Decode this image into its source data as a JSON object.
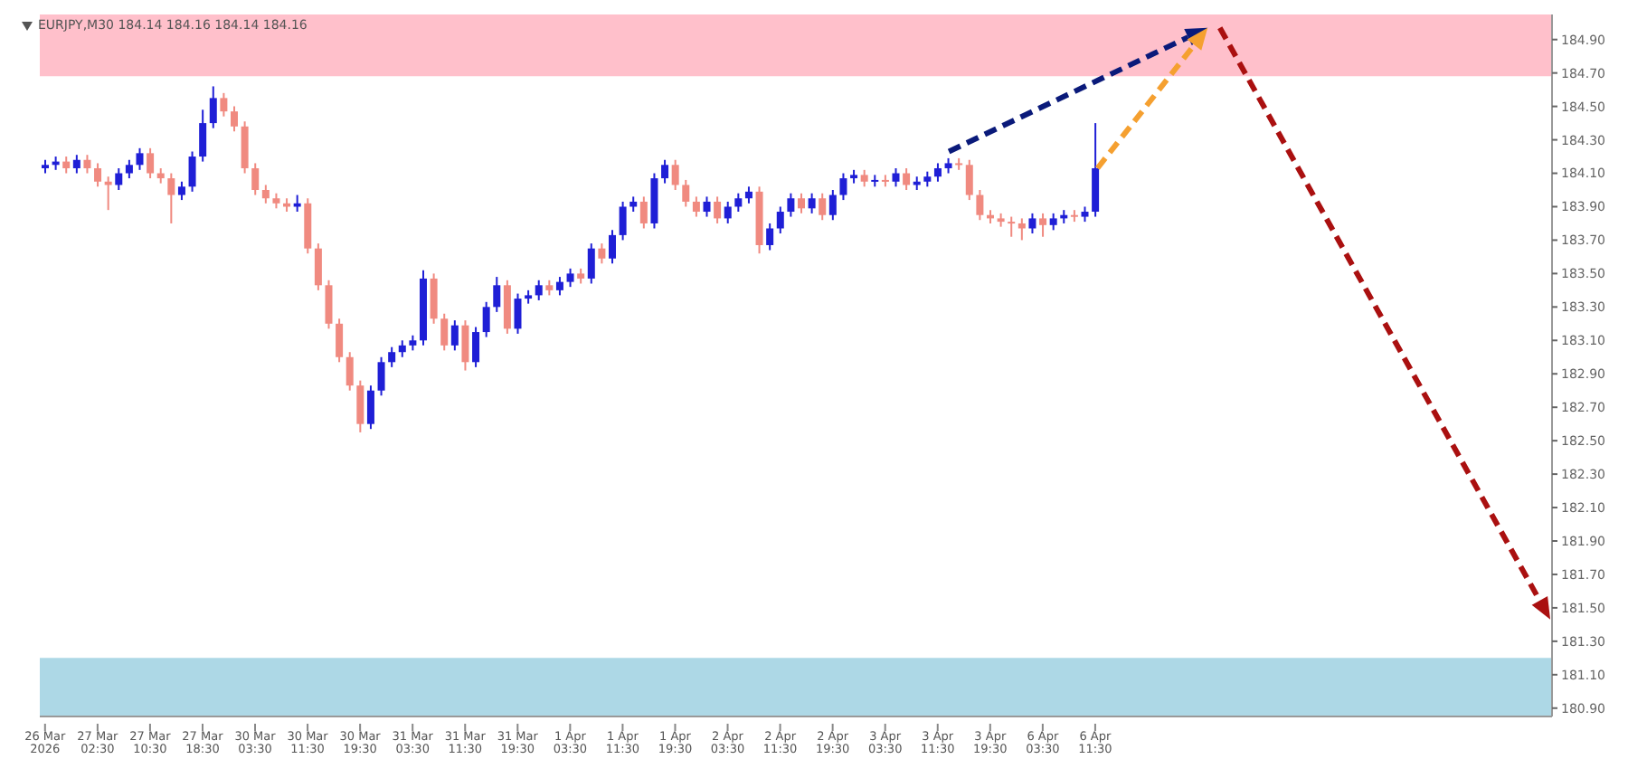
{
  "chart_data": {
    "type": "candlestick",
    "title": "EURJPY,M30  184.14 184.16 184.14 184.16",
    "categories": [
      "26 Mar 2026",
      null,
      null,
      null,
      null,
      "27 Mar 02:30",
      null,
      null,
      null,
      null,
      "27 Mar 10:30",
      null,
      null,
      null,
      null,
      "27 Mar 18:30",
      null,
      null,
      null,
      null,
      "30 Mar 03:30",
      null,
      null,
      null,
      null,
      "30 Mar 11:30",
      null,
      null,
      null,
      null,
      "30 Mar 19:30",
      null,
      null,
      null,
      null,
      "31 Mar 03:30",
      null,
      null,
      null,
      null,
      "31 Mar 11:30",
      null,
      null,
      null,
      null,
      "31 Mar 19:30",
      null,
      null,
      null,
      null,
      "1 Apr 03:30",
      null,
      null,
      null,
      null,
      "1 Apr 11:30",
      null,
      null,
      null,
      null,
      "1 Apr 19:30",
      null,
      null,
      null,
      null,
      "2 Apr 03:30",
      null,
      null,
      null,
      null,
      "2 Apr 11:30",
      null,
      null,
      null,
      null,
      "2 Apr 19:30",
      null,
      null,
      null,
      null,
      "3 Apr 03:30",
      null,
      null,
      null,
      null,
      "3 Apr 11:30",
      null,
      null,
      null,
      null,
      "3 Apr 19:30",
      null,
      null,
      null,
      null,
      "6 Apr 03:30",
      null,
      null,
      null,
      null,
      "6 Apr 11:30",
      null,
      null,
      null,
      null,
      null,
      null,
      null,
      null,
      null,
      null,
      null,
      null,
      null,
      null,
      null,
      null,
      null,
      null,
      null,
      null,
      null,
      null,
      null,
      null,
      null,
      null,
      null,
      null,
      null,
      null,
      null,
      null,
      null,
      null,
      null,
      null,
      null,
      null,
      null,
      null,
      null,
      null,
      null
    ],
    "ohlc": [
      [
        184.13,
        184.18,
        184.1,
        184.15
      ],
      [
        184.15,
        184.2,
        184.12,
        184.17
      ],
      [
        184.17,
        184.2,
        184.1,
        184.13
      ],
      [
        184.13,
        184.21,
        184.1,
        184.18
      ],
      [
        184.18,
        184.21,
        184.1,
        184.13
      ],
      [
        184.13,
        184.16,
        184.02,
        184.05
      ],
      [
        184.05,
        184.08,
        183.88,
        184.03
      ],
      [
        184.03,
        184.13,
        184.0,
        184.1
      ],
      [
        184.1,
        184.18,
        184.07,
        184.15
      ],
      [
        184.15,
        184.25,
        184.12,
        184.22
      ],
      [
        184.22,
        184.25,
        184.07,
        184.1
      ],
      [
        184.1,
        184.13,
        184.04,
        184.07
      ],
      [
        184.07,
        184.1,
        183.8,
        183.97
      ],
      [
        183.97,
        184.05,
        183.94,
        184.02
      ],
      [
        184.02,
        184.23,
        183.99,
        184.2
      ],
      [
        184.2,
        184.48,
        184.17,
        184.4
      ],
      [
        184.4,
        184.62,
        184.37,
        184.55
      ],
      [
        184.55,
        184.58,
        184.44,
        184.47
      ],
      [
        184.47,
        184.5,
        184.35,
        184.38
      ],
      [
        184.38,
        184.41,
        184.1,
        184.13
      ],
      [
        184.13,
        184.16,
        183.97,
        184.0
      ],
      [
        184.0,
        184.03,
        183.92,
        183.95
      ],
      [
        183.95,
        183.98,
        183.89,
        183.92
      ],
      [
        183.92,
        183.95,
        183.87,
        183.9
      ],
      [
        183.9,
        183.97,
        183.87,
        183.92
      ],
      [
        183.92,
        183.95,
        183.62,
        183.65
      ],
      [
        183.65,
        183.68,
        183.4,
        183.43
      ],
      [
        183.43,
        183.46,
        183.17,
        183.2
      ],
      [
        183.2,
        183.23,
        182.97,
        183.0
      ],
      [
        183.0,
        183.03,
        182.8,
        182.83
      ],
      [
        182.83,
        182.86,
        182.55,
        182.6
      ],
      [
        182.6,
        182.83,
        182.57,
        182.8
      ],
      [
        182.8,
        183.0,
        182.77,
        182.97
      ],
      [
        182.97,
        183.06,
        182.94,
        183.03
      ],
      [
        183.03,
        183.1,
        183.0,
        183.07
      ],
      [
        183.07,
        183.13,
        183.04,
        183.1
      ],
      [
        183.1,
        183.52,
        183.07,
        183.47
      ],
      [
        183.47,
        183.5,
        183.2,
        183.23
      ],
      [
        183.23,
        183.26,
        183.04,
        183.07
      ],
      [
        183.07,
        183.22,
        183.04,
        183.19
      ],
      [
        183.19,
        183.22,
        182.92,
        182.97
      ],
      [
        182.97,
        183.18,
        182.94,
        183.15
      ],
      [
        183.15,
        183.33,
        183.12,
        183.3
      ],
      [
        183.3,
        183.48,
        183.27,
        183.43
      ],
      [
        183.43,
        183.46,
        183.14,
        183.17
      ],
      [
        183.17,
        183.38,
        183.14,
        183.35
      ],
      [
        183.35,
        183.4,
        183.32,
        183.37
      ],
      [
        183.37,
        183.46,
        183.34,
        183.43
      ],
      [
        183.43,
        183.46,
        183.37,
        183.4
      ],
      [
        183.4,
        183.48,
        183.37,
        183.45
      ],
      [
        183.45,
        183.53,
        183.42,
        183.5
      ],
      [
        183.5,
        183.53,
        183.44,
        183.47
      ],
      [
        183.47,
        183.68,
        183.44,
        183.65
      ],
      [
        183.65,
        183.68,
        183.56,
        183.59
      ],
      [
        183.59,
        183.76,
        183.56,
        183.73
      ],
      [
        183.73,
        183.93,
        183.7,
        183.9
      ],
      [
        183.9,
        183.96,
        183.87,
        183.93
      ],
      [
        183.93,
        183.96,
        183.77,
        183.8
      ],
      [
        183.8,
        184.1,
        183.77,
        184.07
      ],
      [
        184.07,
        184.18,
        184.04,
        184.15
      ],
      [
        184.15,
        184.18,
        184.0,
        184.03
      ],
      [
        184.03,
        184.06,
        183.9,
        183.93
      ],
      [
        183.93,
        183.96,
        183.84,
        183.87
      ],
      [
        183.87,
        183.96,
        183.84,
        183.93
      ],
      [
        183.93,
        183.96,
        183.8,
        183.83
      ],
      [
        183.83,
        183.93,
        183.8,
        183.9
      ],
      [
        183.9,
        183.98,
        183.87,
        183.95
      ],
      [
        183.95,
        184.02,
        183.92,
        183.99
      ],
      [
        183.99,
        184.02,
        183.62,
        183.67
      ],
      [
        183.67,
        183.8,
        183.64,
        183.77
      ],
      [
        183.77,
        183.9,
        183.74,
        183.87
      ],
      [
        183.87,
        183.98,
        183.84,
        183.95
      ],
      [
        183.95,
        183.98,
        183.86,
        183.89
      ],
      [
        183.89,
        183.98,
        183.86,
        183.95
      ],
      [
        183.95,
        183.98,
        183.82,
        183.85
      ],
      [
        183.85,
        184.0,
        183.82,
        183.97
      ],
      [
        183.97,
        184.1,
        183.94,
        184.07
      ],
      [
        184.07,
        184.12,
        184.04,
        184.09
      ],
      [
        184.09,
        184.12,
        184.02,
        184.05
      ],
      [
        184.05,
        184.09,
        184.02,
        184.06
      ],
      [
        184.06,
        184.09,
        184.02,
        184.05
      ],
      [
        184.05,
        184.13,
        184.02,
        184.1
      ],
      [
        184.1,
        184.13,
        184.0,
        184.03
      ],
      [
        184.03,
        184.08,
        184.0,
        184.05
      ],
      [
        184.05,
        184.11,
        184.02,
        184.08
      ],
      [
        184.08,
        184.16,
        184.05,
        184.13
      ],
      [
        184.13,
        184.19,
        184.1,
        184.16
      ],
      [
        184.16,
        184.19,
        184.12,
        184.15
      ],
      [
        184.15,
        184.18,
        183.94,
        183.97
      ],
      [
        183.97,
        184.0,
        183.82,
        183.85
      ],
      [
        183.85,
        183.88,
        183.8,
        183.83
      ],
      [
        183.83,
        183.86,
        183.78,
        183.81
      ],
      [
        183.81,
        183.84,
        183.72,
        183.8
      ],
      [
        183.8,
        183.83,
        183.7,
        183.77
      ],
      [
        183.77,
        183.86,
        183.74,
        183.83
      ],
      [
        183.83,
        183.86,
        183.72,
        183.79
      ],
      [
        183.79,
        183.86,
        183.76,
        183.83
      ],
      [
        183.83,
        183.88,
        183.8,
        183.85
      ],
      [
        183.85,
        183.88,
        183.81,
        183.84
      ],
      [
        183.84,
        183.9,
        183.81,
        183.87
      ],
      [
        183.87,
        184.4,
        183.84,
        184.13
      ],
      null,
      null,
      null,
      null,
      null,
      null,
      null,
      null,
      null,
      null,
      null,
      null,
      null,
      null,
      null,
      null,
      null,
      null,
      null,
      null,
      null,
      null,
      null,
      null,
      null,
      null,
      null,
      null,
      null,
      null,
      null,
      null,
      null,
      null,
      null,
      null,
      null,
      null,
      null,
      null,
      null,
      null,
      null
    ],
    "colors": [
      "#1f1fd6",
      "#1f1fd6",
      "#f08a80",
      "#1f1fd6",
      "#f08a80",
      "#f08a80",
      "#f08a80",
      "#1f1fd6",
      "#1f1fd6",
      "#1f1fd6",
      "#f08a80",
      "#f08a80",
      "#f08a80",
      "#1f1fd6",
      "#1f1fd6",
      "#1f1fd6",
      "#1f1fd6",
      "#f08a80",
      "#f08a80",
      "#f08a80",
      "#f08a80",
      "#f08a80",
      "#f08a80",
      "#f08a80",
      "#1f1fd6",
      "#f08a80",
      "#f08a80",
      "#f08a80",
      "#f08a80",
      "#f08a80",
      "#f08a80",
      "#1f1fd6",
      "#1f1fd6",
      "#1f1fd6",
      "#1f1fd6",
      "#1f1fd6",
      "#1f1fd6",
      "#f08a80",
      "#f08a80",
      "#1f1fd6",
      "#f08a80",
      "#1f1fd6",
      "#1f1fd6",
      "#1f1fd6",
      "#f08a80",
      "#1f1fd6",
      "#1f1fd6",
      "#1f1fd6",
      "#f08a80",
      "#1f1fd6",
      "#1f1fd6",
      "#f08a80",
      "#1f1fd6",
      "#f08a80",
      "#1f1fd6",
      "#1f1fd6",
      "#1f1fd6",
      "#f08a80",
      "#1f1fd6",
      "#1f1fd6",
      "#f08a80",
      "#f08a80",
      "#f08a80",
      "#1f1fd6",
      "#f08a80",
      "#1f1fd6",
      "#1f1fd6",
      "#1f1fd6",
      "#f08a80",
      "#1f1fd6",
      "#1f1fd6",
      "#1f1fd6",
      "#f08a80",
      "#1f1fd6",
      "#f08a80",
      "#1f1fd6",
      "#1f1fd6",
      "#1f1fd6",
      "#f08a80",
      "#1f1fd6",
      "#f08a80",
      "#1f1fd6",
      "#f08a80",
      "#1f1fd6",
      "#1f1fd6",
      "#1f1fd6",
      "#1f1fd6",
      "#f08a80",
      "#f08a80",
      "#f08a80",
      "#f08a80",
      "#f08a80",
      "#f08a80",
      "#f08a80",
      "#1f1fd6",
      "#f08a80",
      "#1f1fd6",
      "#1f1fd6",
      "#f08a80",
      "#1f1fd6",
      "#1f1fd6",
      null,
      null,
      null,
      null,
      null,
      null,
      null,
      null,
      null,
      null,
      null,
      null,
      null,
      null,
      null,
      null,
      null,
      null,
      null,
      null,
      null,
      null,
      null,
      null,
      null,
      null,
      null,
      null,
      null,
      null,
      null,
      null,
      null,
      null,
      null,
      null,
      null,
      null,
      null,
      null,
      null,
      null,
      null
    ],
    "ylim": [
      180.85,
      185.05
    ],
    "yticks": [
      {
        "value": 180.9,
        "label": "180.90"
      },
      {
        "value": 181.1,
        "label": "181.10"
      },
      {
        "value": 181.3,
        "label": "181.30"
      },
      {
        "value": 181.5,
        "label": "181.50"
      },
      {
        "value": 181.7,
        "label": "181.70"
      },
      {
        "value": 181.9,
        "label": "181.90"
      },
      {
        "value": 182.1,
        "label": "182.10"
      },
      {
        "value": 182.3,
        "label": "182.30"
      },
      {
        "value": 182.5,
        "label": "182.50"
      },
      {
        "value": 182.7,
        "label": "182.70"
      },
      {
        "value": 182.9,
        "label": "182.90"
      },
      {
        "value": 183.1,
        "label": "183.10"
      },
      {
        "value": 183.3,
        "label": "183.30"
      },
      {
        "value": 183.5,
        "label": "183.50"
      },
      {
        "value": 183.7,
        "label": "183.70"
      },
      {
        "value": 183.9,
        "label": "183.90"
      },
      {
        "value": 184.1,
        "label": "184.10"
      },
      {
        "value": 184.3,
        "label": "184.30"
      },
      {
        "value": 184.5,
        "label": "184.50"
      },
      {
        "value": 184.7,
        "label": "184.70"
      },
      {
        "value": 184.9,
        "label": "184.90"
      }
    ],
    "bands": [
      {
        "axis": "y",
        "from": 184.68,
        "to": 185.05,
        "color": "#ffc0cb"
      },
      {
        "axis": "y",
        "from": 180.85,
        "to": 181.2,
        "color": "#add8e6"
      }
    ],
    "tick_labels": "xy",
    "grid": false,
    "legend": false
  }
}
